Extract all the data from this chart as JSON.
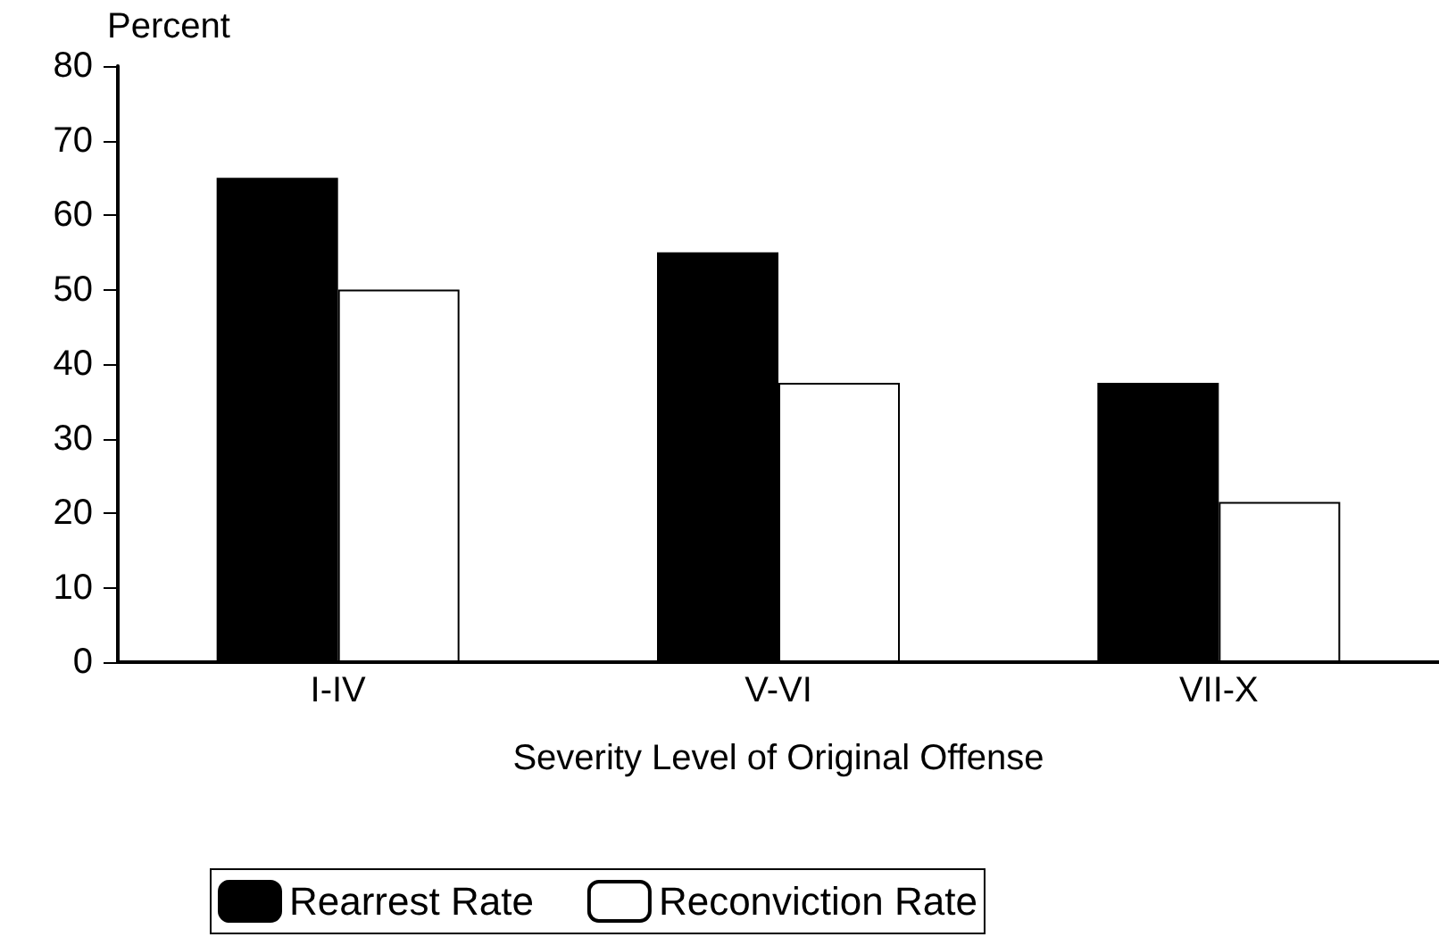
{
  "chart_data": {
    "type": "bar",
    "xlabel": "Severity Level of Original Offense",
    "ylabel": "Percent",
    "categories": [
      "I-IV",
      "V-VI",
      "VII-X"
    ],
    "series": [
      {
        "name": "Rearrest Rate",
        "color": "#000000",
        "values": [
          65,
          55,
          37.5
        ]
      },
      {
        "name": "Reconviction Rate",
        "color": "#ffffff",
        "values": [
          50,
          37.5,
          21.5
        ]
      }
    ],
    "ylim": [
      0,
      80
    ],
    "yticks": [
      0,
      10,
      20,
      30,
      40,
      50,
      60,
      70,
      80
    ],
    "grid": false,
    "legend": "bottom"
  }
}
